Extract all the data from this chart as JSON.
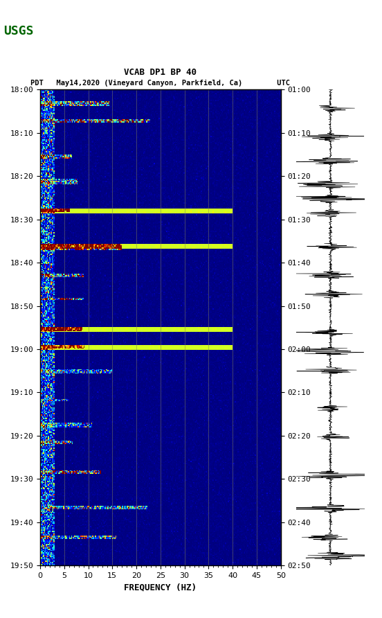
{
  "title_line1": "VCAB DP1 BP 40",
  "title_line2": "PDT   May14,2020 (Vineyard Canyon, Parkfield, Ca)        UTC",
  "xlabel": "FREQUENCY (HZ)",
  "freq_min": 0,
  "freq_max": 50,
  "time_start_pdt": "18:00",
  "time_end_pdt": "19:50",
  "time_start_utc": "01:00",
  "time_end_utc": "02:50",
  "ytick_pdt": [
    "18:00",
    "18:10",
    "18:20",
    "18:30",
    "18:40",
    "18:50",
    "19:00",
    "19:10",
    "19:20",
    "19:30",
    "19:40",
    "19:50"
  ],
  "ytick_utc": [
    "01:00",
    "01:10",
    "01:20",
    "01:30",
    "01:40",
    "01:50",
    "02:00",
    "02:10",
    "02:20",
    "02:30",
    "02:40",
    "02:50"
  ],
  "xticks": [
    0,
    5,
    10,
    15,
    20,
    25,
    30,
    35,
    40,
    45,
    50
  ],
  "vertical_lines_freq": [
    5,
    10,
    15,
    20,
    25,
    30,
    35,
    40,
    45
  ],
  "background_color": "#000080",
  "fig_bg": "#ffffff",
  "spectrogram_colormap": "jet",
  "figure_width": 5.52,
  "figure_height": 8.92,
  "dpi": 100
}
